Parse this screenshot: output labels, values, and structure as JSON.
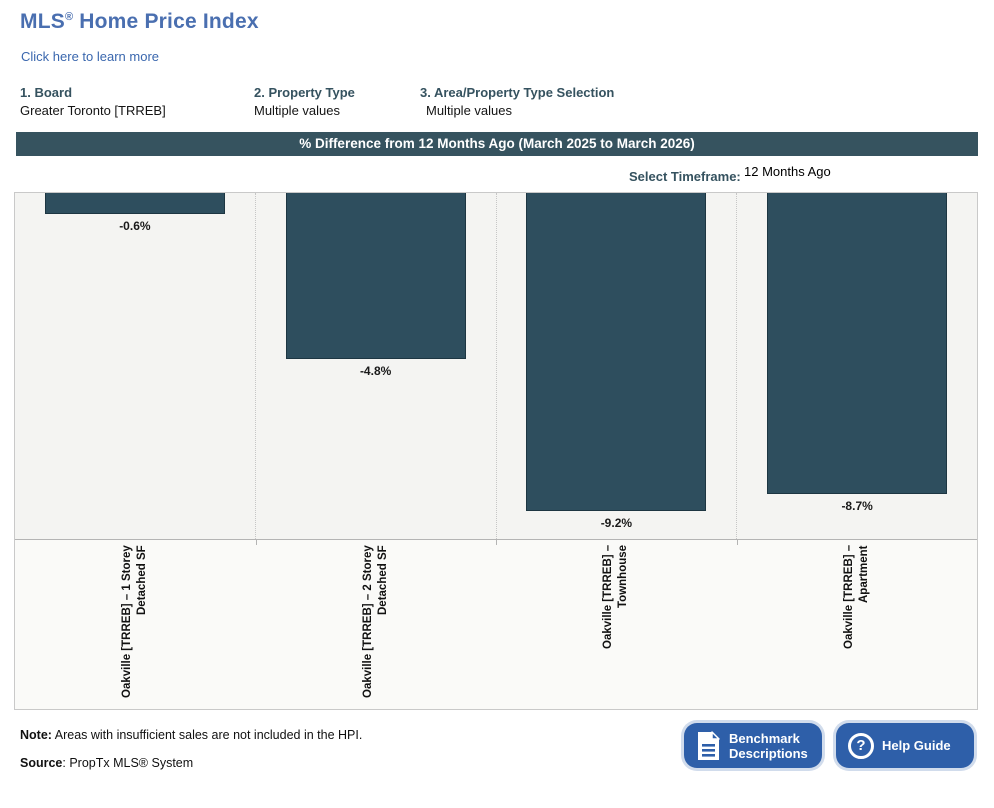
{
  "header": {
    "title_mls": "MLS",
    "title_reg": "®",
    "title_rest": " Home Price Index",
    "learn_more": "Click here to learn more"
  },
  "filters": [
    {
      "label": "1. Board",
      "value": "Greater Toronto [TRREB]"
    },
    {
      "label": "2. Property Type",
      "value": "Multiple values"
    },
    {
      "label": "3. Area/Property Type Selection",
      "value": "Multiple values"
    }
  ],
  "timeframe": {
    "label": "Select Timeframe:",
    "value": "12 Months Ago"
  },
  "chart_data": {
    "type": "bar",
    "title": "% Difference from 12 Months Ago (March 2025 to March 2026)",
    "categories": [
      "Oakville [TRREB] – 1 Storey Detached SF",
      "Oakville [TRREB] – 2 Storey Detached SF",
      "Oakville [TRREB] – Townhouse",
      "Oakville [TRREB] – Apartment"
    ],
    "category_lines": [
      [
        "Oakville [TRREB] – 1 Storey",
        "Detached SF"
      ],
      [
        "Oakville [TRREB] – 2 Storey",
        "Detached SF"
      ],
      [
        "Oakville [TRREB] –",
        "Townhouse"
      ],
      [
        "Oakville [TRREB] –",
        "Apartment"
      ]
    ],
    "values": [
      -0.6,
      -4.8,
      -9.2,
      -8.7
    ],
    "data_labels": [
      "-0.6%",
      "-4.8%",
      "-9.2%",
      "-8.7%"
    ],
    "xlabel": "",
    "ylabel": "",
    "ylim": [
      -10,
      0
    ],
    "grid": false,
    "legend": "none",
    "bar_color": "#2e4e5e",
    "plot_bg": "#f4f4f2"
  },
  "footer": {
    "note_label": "Note:",
    "note_text": " Areas with insufficient sales are not included in the HPI.",
    "source_label": "Source",
    "source_text": ": PropTx MLS® System",
    "buttons": [
      {
        "icon": "document-icon",
        "label": "Benchmark\nDescriptions"
      },
      {
        "icon": "question-icon",
        "label": "Help Guide"
      }
    ]
  },
  "colors": {
    "title_blue": "#4a6fb0",
    "link_blue": "#3a67ae",
    "label_slate": "#35525f",
    "banner_bg": "#36535f",
    "bar_fill": "#2e4e5e",
    "button_blue": "#2e5fa9"
  }
}
